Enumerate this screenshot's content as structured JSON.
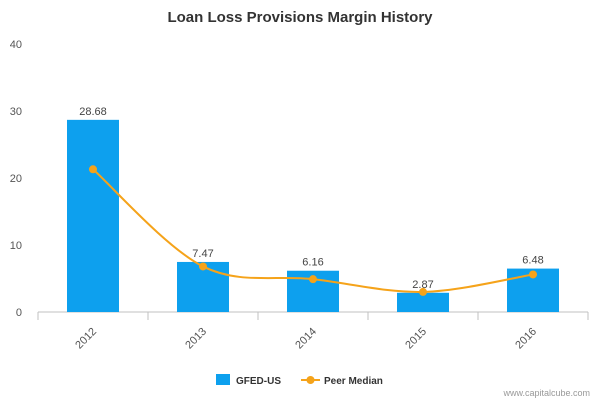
{
  "chart_data": {
    "type": "bar",
    "title": "Loan Loss Provisions Margin History",
    "categories": [
      "2012",
      "2013",
      "2014",
      "2015",
      "2016"
    ],
    "series": [
      {
        "name": "GFED-US",
        "kind": "bar",
        "values": [
          28.68,
          7.47,
          6.16,
          2.87,
          6.48
        ],
        "color": "#0da0ee"
      },
      {
        "name": "Peer Median",
        "kind": "line",
        "values": [
          21.3,
          6.8,
          4.9,
          3.0,
          5.6
        ],
        "color": "#f5a31a"
      }
    ],
    "data_labels": [
      "28.68",
      "7.47",
      "6.16",
      "2.87",
      "6.48"
    ],
    "ylim": [
      0,
      40
    ],
    "yticks": [
      0,
      10,
      20,
      30,
      40
    ],
    "xlabel": "",
    "ylabel": "",
    "grid": false,
    "legend_position": "bottom-center"
  },
  "watermark": "www.capitalcube.com"
}
